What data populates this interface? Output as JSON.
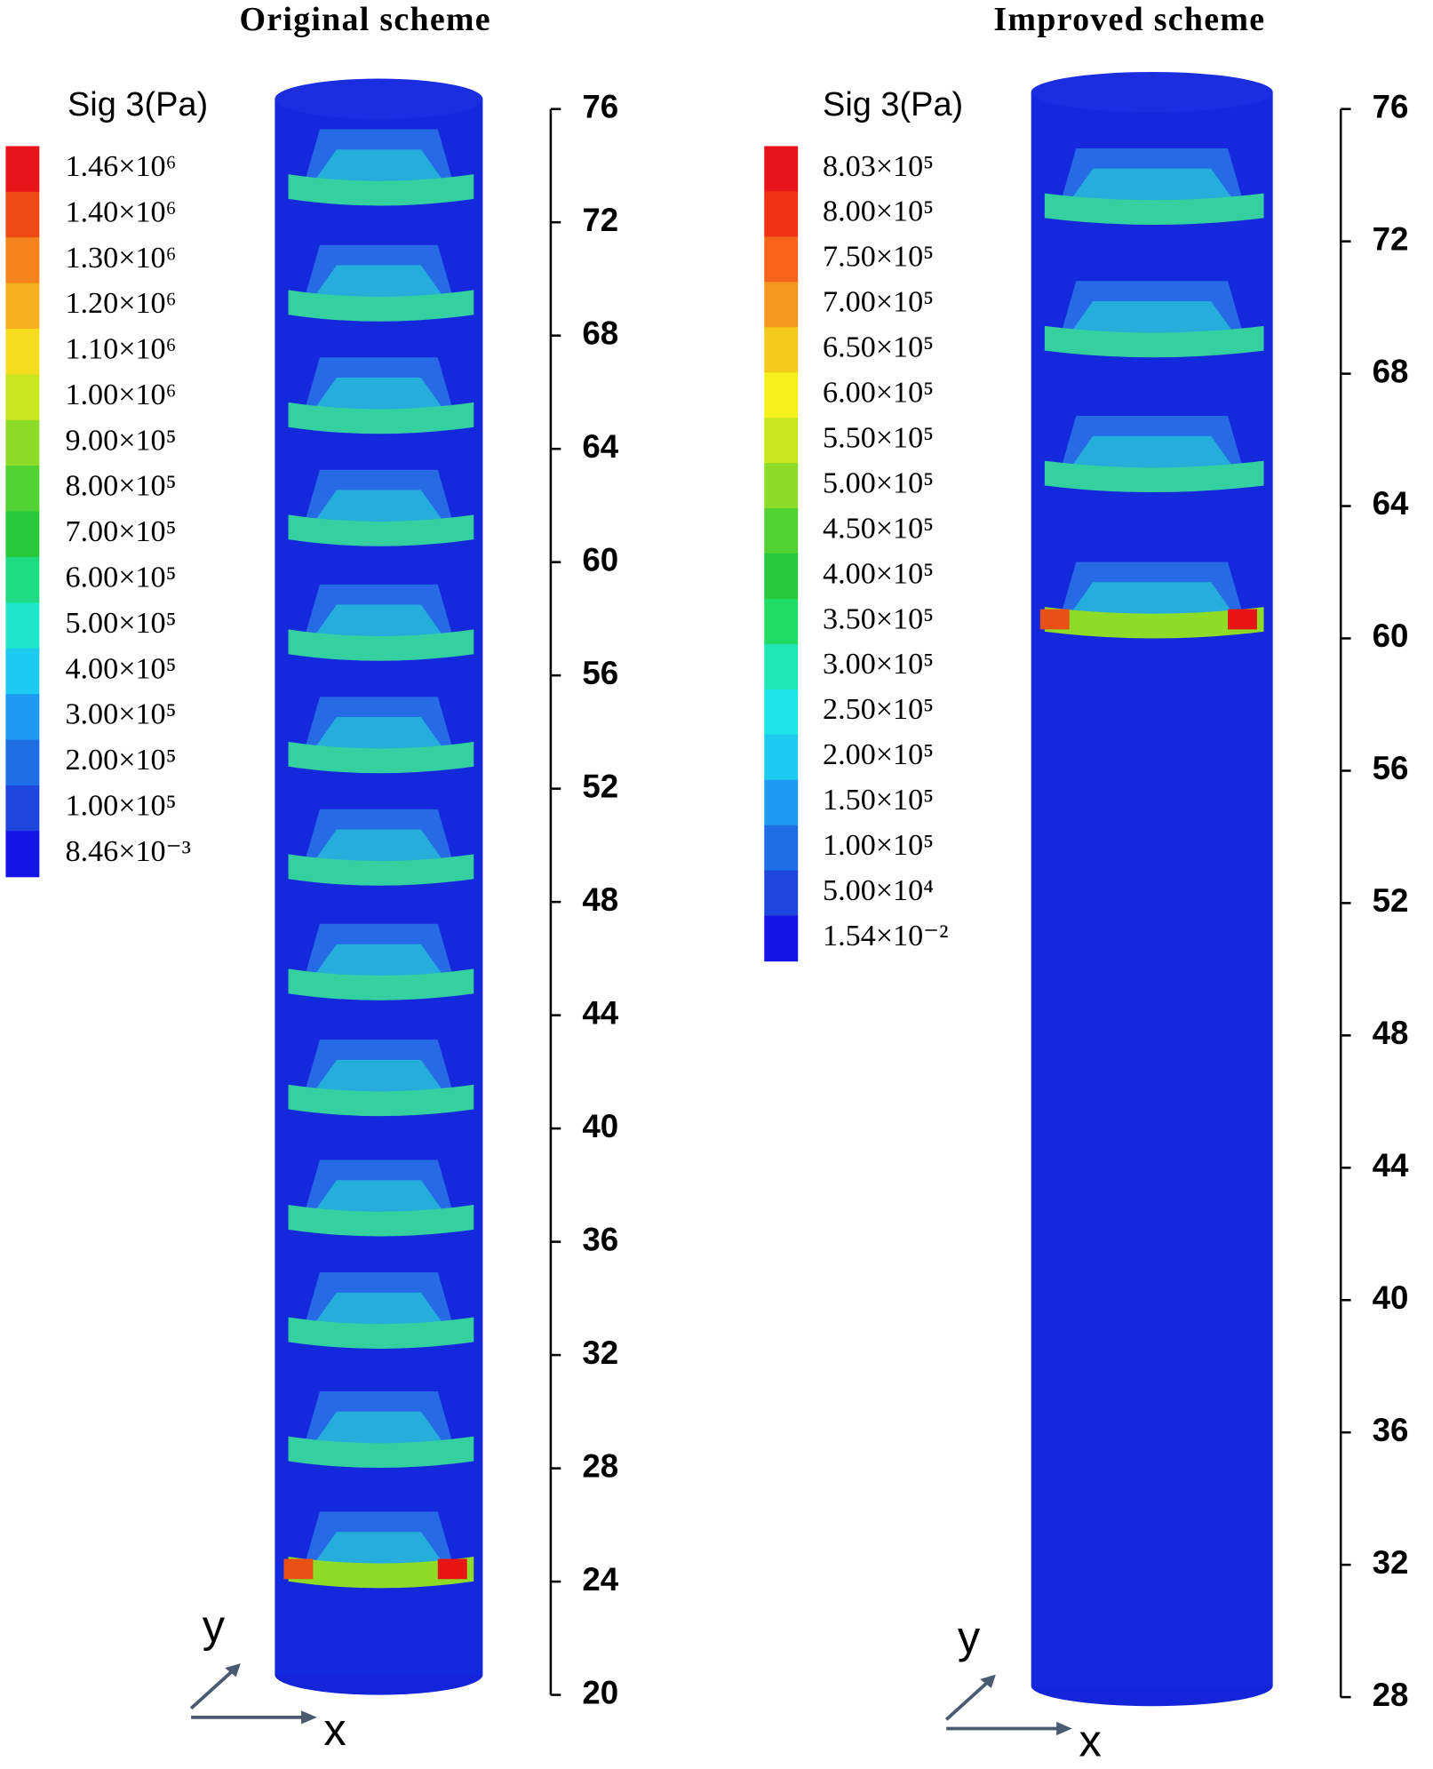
{
  "panels": [
    {
      "title": "Original scheme",
      "legend_title": "Sig 3(Pa)",
      "legend_labels": [
        "1.46×10⁶",
        "1.40×10⁶",
        "1.30×10⁶",
        "1.20×10⁶",
        "1.10×10⁶",
        "1.00×10⁶",
        "9.00×10⁵",
        "8.00×10⁵",
        "7.00×10⁵",
        "6.00×10⁵",
        "5.00×10⁵",
        "4.00×10⁵",
        "3.00×10⁵",
        "2.00×10⁵",
        "1.00×10⁵",
        "8.46×10⁻³"
      ],
      "legend_colors": [
        "#e8141c",
        "#f04a14",
        "#f5841a",
        "#f5b01e",
        "#f5dc1e",
        "#c8e61e",
        "#8cdc28",
        "#50d232",
        "#28c83c",
        "#1edc82",
        "#1ee6c8",
        "#1ecbf0",
        "#1e9bf0",
        "#1e6ee6",
        "#1e46dc",
        "#1414e6"
      ],
      "yticks": [
        76,
        72,
        68,
        64,
        60,
        56,
        52,
        48,
        44,
        40,
        36,
        32,
        28,
        24,
        20
      ],
      "axis_labels": {
        "y": "y",
        "x": "x"
      }
    },
    {
      "title": "Improved scheme",
      "legend_title": "Sig 3(Pa)",
      "legend_labels": [
        "8.03×10⁵",
        "8.00×10⁵",
        "7.50×10⁵",
        "7.00×10⁵",
        "6.50×10⁵",
        "6.00×10⁵",
        "5.50×10⁵",
        "5.00×10⁵",
        "4.50×10⁵",
        "4.00×10⁵",
        "3.50×10⁵",
        "3.00×10⁵",
        "2.50×10⁵",
        "2.00×10⁵",
        "1.50×10⁵",
        "1.00×10⁵",
        "5.00×10⁴",
        "1.54×10⁻²"
      ],
      "legend_colors": [
        "#e8141c",
        "#f03214",
        "#f5641a",
        "#f5961e",
        "#f5c81e",
        "#f5f01e",
        "#c8e61e",
        "#8cdc28",
        "#50d232",
        "#28c83c",
        "#1edc64",
        "#1ee6b4",
        "#1ee6e6",
        "#1ecbf0",
        "#1e9bf0",
        "#1e6ee6",
        "#1e46dc",
        "#1414e6"
      ],
      "yticks": [
        76,
        72,
        68,
        64,
        60,
        56,
        52,
        48,
        44,
        40,
        36,
        32,
        28
      ],
      "axis_labels": {
        "y": "y",
        "x": "x"
      }
    }
  ]
}
